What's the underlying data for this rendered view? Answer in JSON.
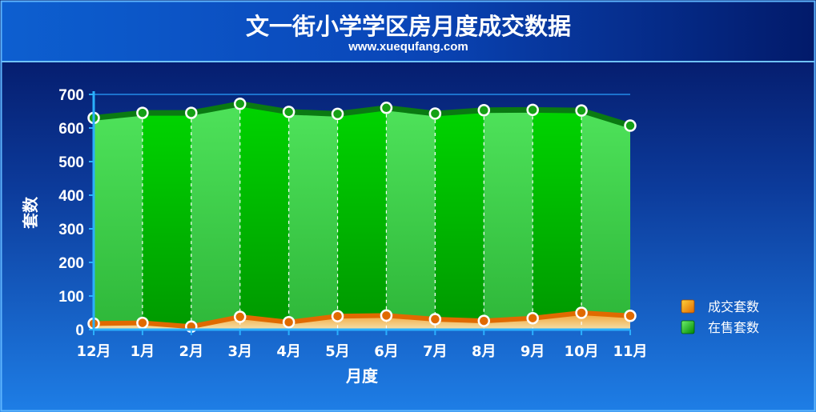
{
  "header": {
    "title": "文一街小学学区房月度成交数据",
    "subtitle": "www.xuequfang.com"
  },
  "chart_data": {
    "type": "area",
    "categories": [
      "12月",
      "1月",
      "2月",
      "3月",
      "4月",
      "5月",
      "6月",
      "7月",
      "8月",
      "9月",
      "10月",
      "11月"
    ],
    "series": [
      {
        "name": "在售套数",
        "values": [
          630,
          645,
          645,
          672,
          648,
          642,
          660,
          643,
          653,
          654,
          652,
          607
        ],
        "color": "#00c800"
      },
      {
        "name": "成交套数",
        "values": [
          18,
          20,
          9,
          38,
          22,
          40,
          42,
          31,
          26,
          34,
          50,
          41
        ],
        "color": "#ff8c00"
      }
    ],
    "xlabel": "月度",
    "ylabel": "套数",
    "ylim": [
      0,
      700
    ],
    "yticks": [
      0,
      100,
      200,
      300,
      400,
      500,
      600,
      700
    ],
    "grid": true,
    "legend": "right"
  }
}
